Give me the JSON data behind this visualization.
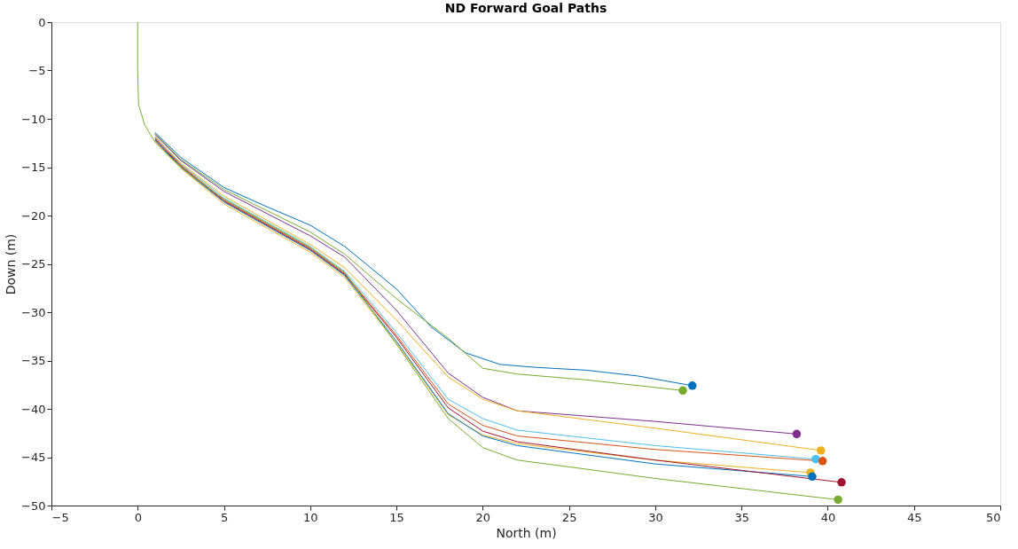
{
  "chart_data": {
    "type": "line",
    "title": "ND Forward Goal Paths",
    "xlabel": "North (m)",
    "ylabel": "Down (m)",
    "xlim": [
      -5,
      50
    ],
    "xticks": [
      -5,
      0,
      5,
      10,
      15,
      20,
      25,
      30,
      35,
      40,
      45,
      50
    ],
    "ylim": [
      -50,
      0
    ],
    "yticks": [
      -50,
      -45,
      -40,
      -35,
      -30,
      -25,
      -20,
      -15,
      -10,
      -5,
      0
    ],
    "grid": false,
    "line_style": "solid",
    "series": [
      {
        "color": "#0072bd",
        "x": [
          1,
          2.5,
          5,
          7.5,
          10,
          12,
          15,
          17,
          19,
          21,
          23,
          26,
          29,
          32.15
        ],
        "values": [
          -11.4,
          -14.0,
          -17.1,
          -19.1,
          -21,
          -23.2,
          -27.6,
          -31.5,
          -34.2,
          -35.4,
          -35.7,
          -36,
          -36.6,
          -37.6
        ]
      },
      {
        "color": "#77ac30",
        "x": [
          1,
          2.5,
          5,
          7.5,
          10,
          12,
          15,
          18,
          20,
          22,
          26,
          31.6
        ],
        "values": [
          -11.5,
          -14.2,
          -17.3,
          -19.5,
          -21.7,
          -24,
          -28.6,
          -32.7,
          -35.8,
          -36.4,
          -37,
          -38.1
        ]
      },
      {
        "color": "#7e2f8e",
        "x": [
          1,
          2.5,
          5,
          7.5,
          10,
          12,
          15,
          18,
          20,
          22,
          30,
          38.2
        ],
        "values": [
          -11.6,
          -14.3,
          -17.5,
          -19.8,
          -22.1,
          -24.3,
          -29.8,
          -36.3,
          -38.8,
          -40.2,
          -41.3,
          -42.6
        ]
      },
      {
        "color": "#edb120",
        "x": [
          1,
          2.5,
          5,
          7.5,
          10,
          12,
          15,
          18,
          20,
          22,
          30,
          39.6
        ],
        "values": [
          -11.8,
          -14.6,
          -18.0,
          -20.5,
          -23,
          -25.4,
          -30.8,
          -36.7,
          -39,
          -40.2,
          -42,
          -44.3
        ]
      },
      {
        "color": "#4dbeee",
        "x": [
          1,
          2.5,
          5,
          7.5,
          10,
          12,
          15,
          18,
          20,
          22,
          30,
          39.3
        ],
        "values": [
          -11.9,
          -14.7,
          -18.2,
          -20.7,
          -23.2,
          -25.8,
          -32.1,
          -39,
          -41,
          -42.2,
          -43.8,
          -45.2
        ]
      },
      {
        "color": "#d95319",
        "x": [
          1,
          2.5,
          5,
          7.5,
          10,
          12,
          15,
          18,
          20,
          22,
          30,
          39.7
        ],
        "values": [
          -12.0,
          -14.8,
          -18.4,
          -20.9,
          -23.4,
          -26,
          -32.4,
          -39.5,
          -41.7,
          -42.8,
          -44.2,
          -45.4
        ]
      },
      {
        "color": "#edb120",
        "x": [
          1,
          2.5,
          5,
          7.5,
          10,
          12,
          15,
          18,
          20,
          22,
          30,
          39
        ],
        "values": [
          -12.3,
          -15.1,
          -18.8,
          -21.3,
          -23.8,
          -26.4,
          -33.2,
          -40.6,
          -42.7,
          -43.6,
          -45.3,
          -46.6
        ]
      },
      {
        "color": "#0072bd",
        "x": [
          1,
          2.5,
          5,
          7.5,
          10,
          12,
          15,
          18,
          20,
          22,
          30,
          39.1
        ],
        "values": [
          -12.2,
          -15.0,
          -18.6,
          -21.1,
          -23.6,
          -26.2,
          -33,
          -40.5,
          -42.8,
          -43.8,
          -45.7,
          -47
        ]
      },
      {
        "color": "#a2142f",
        "x": [
          1,
          2.5,
          5,
          7.5,
          10,
          12,
          15,
          18,
          20,
          22,
          30,
          40.8
        ],
        "values": [
          -12.1,
          -14.9,
          -18.5,
          -21,
          -23.5,
          -26.1,
          -32.6,
          -39.9,
          -42.3,
          -43.4,
          -45.3,
          -47.6
        ]
      },
      {
        "color": "#77ac30",
        "x": [
          0,
          0,
          0.05,
          0.4,
          1,
          2,
          3,
          5,
          7.5,
          10,
          12,
          15,
          18,
          20,
          22,
          25,
          30,
          40.6
        ],
        "values": [
          0,
          -5,
          -8.5,
          -10.6,
          -12.4,
          -14.2,
          -15.7,
          -18.3,
          -20.8,
          -23.3,
          -25.9,
          -33.3,
          -41,
          -44,
          -45.3,
          -46,
          -47.2,
          -49.4
        ]
      },
      {
        "type": "scatter",
        "marker": "circle",
        "color": "#0072bd",
        "x": [
          32.15
        ],
        "values": [
          -37.6
        ]
      },
      {
        "type": "scatter",
        "marker": "circle",
        "color": "#77ac30",
        "x": [
          31.6
        ],
        "values": [
          -38.1
        ]
      },
      {
        "type": "scatter",
        "marker": "circle",
        "color": "#7e2f8e",
        "x": [
          38.2
        ],
        "values": [
          -42.6
        ]
      },
      {
        "type": "scatter",
        "marker": "circle",
        "color": "#edb120",
        "x": [
          39.6
        ],
        "values": [
          -44.3
        ]
      },
      {
        "type": "scatter",
        "marker": "circle",
        "color": "#4dbeee",
        "x": [
          39.3
        ],
        "values": [
          -45.2
        ]
      },
      {
        "type": "scatter",
        "marker": "circle",
        "color": "#d95319",
        "x": [
          39.7
        ],
        "values": [
          -45.4
        ]
      },
      {
        "type": "scatter",
        "marker": "circle",
        "color": "#edb120",
        "x": [
          39
        ],
        "values": [
          -46.6
        ]
      },
      {
        "type": "scatter",
        "marker": "circle",
        "color": "#0072bd",
        "x": [
          39.1
        ],
        "values": [
          -47
        ]
      },
      {
        "type": "scatter",
        "marker": "circle",
        "color": "#a2142f",
        "x": [
          40.8
        ],
        "values": [
          -47.6
        ]
      },
      {
        "type": "scatter",
        "marker": "circle",
        "color": "#77ac30",
        "x": [
          40.6
        ],
        "values": [
          -49.4
        ]
      }
    ]
  }
}
